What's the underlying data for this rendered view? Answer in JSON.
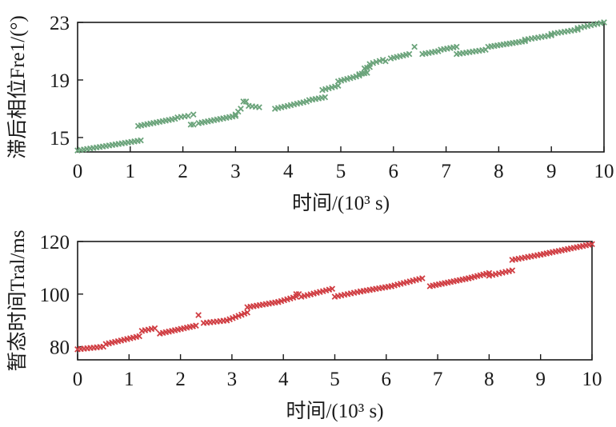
{
  "chart_data": [
    {
      "type": "scatter",
      "xlabel": "时间/(10³ s)",
      "ylabel": "滞后相位Fre1/(°)",
      "xlim": [
        0,
        10
      ],
      "ylim": [
        14,
        23
      ],
      "xticks": [
        "0",
        "1",
        "2",
        "3",
        "4",
        "5",
        "6",
        "7",
        "8",
        "9",
        "10"
      ],
      "yticks": [
        "15",
        "19",
        "23"
      ],
      "grid": false,
      "color": "#6aa37a",
      "marker": "x",
      "series": [
        {
          "segments": [
            {
              "x": [
                0,
                1.2
              ],
              "y": [
                14.1,
                14.8
              ]
            },
            {
              "x": [
                1.15,
                1.85
              ],
              "y": [
                15.8,
                16.3
              ]
            },
            {
              "x": [
                1.9,
                2.1
              ],
              "y": [
                16.4,
                16.5
              ]
            },
            {
              "x": [
                2.2,
                2.2
              ],
              "y": [
                16.6,
                16.6
              ]
            },
            {
              "x": [
                2.15,
                2.2
              ],
              "y": [
                15.9,
                15.9
              ]
            },
            {
              "x": [
                2.3,
                3.0
              ],
              "y": [
                16.0,
                16.5
              ]
            },
            {
              "x": [
                3.0,
                3.1
              ],
              "y": [
                16.6,
                17.0
              ]
            },
            {
              "x": [
                3.15,
                3.2
              ],
              "y": [
                17.5,
                17.5
              ]
            },
            {
              "x": [
                3.25,
                3.45
              ],
              "y": [
                17.2,
                17.1
              ]
            },
            {
              "x": [
                3.75,
                4.35
              ],
              "y": [
                17.0,
                17.5
              ]
            },
            {
              "x": [
                4.4,
                4.7
              ],
              "y": [
                17.6,
                17.8
              ]
            },
            {
              "x": [
                4.65,
                4.95
              ],
              "y": [
                18.3,
                18.6
              ]
            },
            {
              "x": [
                4.95,
                5.35
              ],
              "y": [
                18.9,
                19.3
              ]
            },
            {
              "x": [
                5.35,
                5.5
              ],
              "y": [
                19.4,
                19.5
              ]
            },
            {
              "x": [
                5.45,
                5.55
              ],
              "y": [
                19.8,
                19.9
              ]
            },
            {
              "x": [
                5.55,
                5.8
              ],
              "y": [
                20.1,
                20.4
              ]
            },
            {
              "x": [
                5.85,
                5.85
              ],
              "y": [
                20.3,
                20.3
              ]
            },
            {
              "x": [
                5.95,
                6.3
              ],
              "y": [
                20.5,
                20.8
              ]
            },
            {
              "x": [
                6.4,
                6.4
              ],
              "y": [
                21.3,
                21.3
              ]
            },
            {
              "x": [
                6.55,
                6.85
              ],
              "y": [
                20.8,
                21.0
              ]
            },
            {
              "x": [
                6.9,
                7.2
              ],
              "y": [
                21.1,
                21.3
              ]
            },
            {
              "x": [
                7.2,
                7.75
              ],
              "y": [
                20.8,
                21.1
              ]
            },
            {
              "x": [
                7.8,
                8.5
              ],
              "y": [
                21.3,
                21.7
              ]
            },
            {
              "x": [
                8.5,
                9.0
              ],
              "y": [
                21.8,
                22.1
              ]
            },
            {
              "x": [
                9.0,
                9.5
              ],
              "y": [
                22.2,
                22.5
              ]
            },
            {
              "x": [
                9.5,
                10.0
              ],
              "y": [
                22.6,
                23.0
              ]
            }
          ]
        }
      ]
    },
    {
      "type": "scatter",
      "xlabel": "时间/(10³ s)",
      "ylabel": "暂态时间Tral/ms",
      "xlim": [
        0,
        10
      ],
      "ylim": [
        75,
        120
      ],
      "xticks": [
        "0",
        "1",
        "2",
        "3",
        "4",
        "5",
        "6",
        "7",
        "8",
        "9",
        "10"
      ],
      "yticks": [
        "80",
        "100",
        "120"
      ],
      "grid": false,
      "color": "#d03d42",
      "marker": "x",
      "series": [
        {
          "segments": [
            {
              "x": [
                0,
                0.5
              ],
              "y": [
                79,
                80
              ]
            },
            {
              "x": [
                0.55,
                1.2
              ],
              "y": [
                81,
                84
              ]
            },
            {
              "x": [
                1.25,
                1.5
              ],
              "y": [
                86,
                87
              ]
            },
            {
              "x": [
                1.6,
                2.3
              ],
              "y": [
                85,
                88
              ]
            },
            {
              "x": [
                2.35,
                2.35
              ],
              "y": [
                92,
                92
              ]
            },
            {
              "x": [
                2.45,
                2.9
              ],
              "y": [
                89,
                90
              ]
            },
            {
              "x": [
                2.9,
                3.3
              ],
              "y": [
                90,
                93
              ]
            },
            {
              "x": [
                3.3,
                3.9
              ],
              "y": [
                95,
                97
              ]
            },
            {
              "x": [
                3.9,
                4.25
              ],
              "y": [
                97,
                99
              ]
            },
            {
              "x": [
                4.25,
                4.3
              ],
              "y": [
                100,
                100
              ]
            },
            {
              "x": [
                4.35,
                4.95
              ],
              "y": [
                99,
                102
              ]
            },
            {
              "x": [
                5.0,
                5.5
              ],
              "y": [
                99,
                101
              ]
            },
            {
              "x": [
                5.5,
                6.1
              ],
              "y": [
                101,
                103
              ]
            },
            {
              "x": [
                6.1,
                6.7
              ],
              "y": [
                103,
                106
              ]
            },
            {
              "x": [
                6.85,
                7.6
              ],
              "y": [
                103,
                106
              ]
            },
            {
              "x": [
                7.6,
                8.0
              ],
              "y": [
                106,
                108
              ]
            },
            {
              "x": [
                8.0,
                8.45
              ],
              "y": [
                107,
                109
              ]
            },
            {
              "x": [
                8.45,
                9.0
              ],
              "y": [
                113,
                115
              ]
            },
            {
              "x": [
                9.0,
                10.0
              ],
              "y": [
                115,
                119
              ]
            }
          ]
        }
      ]
    }
  ]
}
